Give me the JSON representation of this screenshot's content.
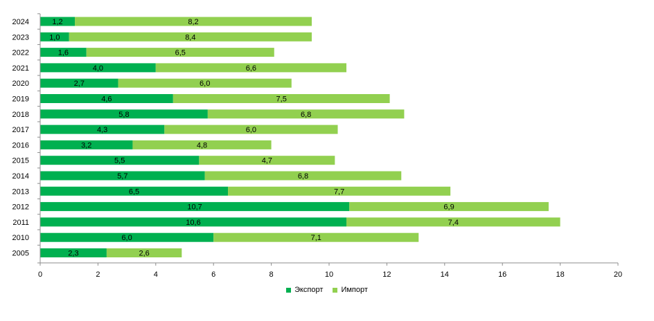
{
  "chart_data": {
    "type": "bar",
    "orientation": "horizontal",
    "stacked": true,
    "categories": [
      "2024",
      "2023",
      "2022",
      "2021",
      "2020",
      "2019",
      "2018",
      "2017",
      "2016",
      "2015",
      "2014",
      "2013",
      "2012",
      "2011",
      "2010",
      "2005"
    ],
    "category_labels": {
      "2024": "2024",
      "2023": "2023",
      "2022": "2022",
      "2021": "2021",
      "2020": "2020",
      "2019": "2019",
      "2018": "2018",
      "2017": "2017",
      "2016": "2016",
      "2015": "2015",
      "2014": "2014",
      "2013": "2013",
      "2012": "2012",
      "2011": "2011",
      "2010": "2010",
      "2005": "2005"
    },
    "series": [
      {
        "name": "Экспорт",
        "color": "#00b050",
        "values": [
          1.2,
          1.0,
          1.6,
          4.0,
          2.7,
          4.6,
          5.8,
          4.3,
          3.2,
          5.5,
          5.7,
          6.5,
          10.7,
          10.6,
          6.0,
          2.3
        ],
        "labels": [
          "1,2",
          "1,0",
          "1,6",
          "4,0",
          "2,7",
          "4,6",
          "5,8",
          "4,3",
          "3,2",
          "5,5",
          "5,7",
          "6,5",
          "10,7",
          "10,6",
          "6,0",
          "2,3"
        ]
      },
      {
        "name": "Импорт",
        "color": "#92d050",
        "values": [
          8.2,
          8.4,
          6.5,
          6.6,
          6.0,
          7.5,
          6.8,
          6.0,
          4.8,
          4.7,
          6.8,
          7.7,
          6.9,
          7.4,
          7.1,
          2.6
        ],
        "labels": [
          "8,2",
          "8,4",
          "6,5",
          "6,6",
          "6,0",
          "7,5",
          "6,8",
          "6,0",
          "4,8",
          "4,7",
          "6,8",
          "7,7",
          "6,9",
          "7,4",
          "7,1",
          "2,6"
        ]
      }
    ],
    "xlim": [
      0,
      20
    ],
    "xticks": [
      "0",
      "2",
      "4",
      "6",
      "8",
      "10",
      "12",
      "14",
      "16",
      "18",
      "20"
    ],
    "grid": false,
    "legend_position": "bottom"
  }
}
